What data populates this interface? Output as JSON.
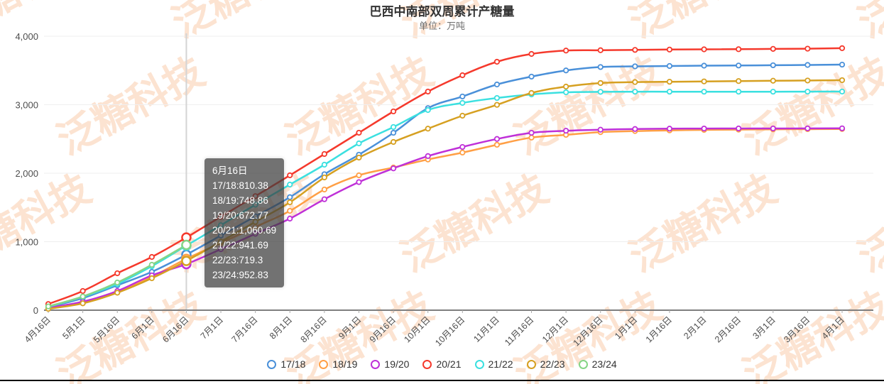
{
  "header": {
    "title": "巴西中南部双周累计产糖量",
    "subtitle": "单位：万吨"
  },
  "watermark": {
    "text": "泛糖科技",
    "color": "rgba(248,184,140,0.40)"
  },
  "tooltip": {
    "title": "6月16日",
    "rows": [
      {
        "series": "17/18",
        "value": "810.38"
      },
      {
        "series": "18/19",
        "value": "748.86"
      },
      {
        "series": "19/20",
        "value": "672.77"
      },
      {
        "series": "20/21",
        "value": "1,060.69"
      },
      {
        "series": "21/22",
        "value": "941.69"
      },
      {
        "series": "22/23",
        "value": "719.3"
      },
      {
        "series": "23/24",
        "value": "952.83"
      }
    ]
  },
  "chart_data": {
    "type": "line",
    "title": "巴西中南部双周累计产糖量",
    "ylabel": "万吨",
    "categories": [
      "4月16日",
      "5月1日",
      "5月16日",
      "6月1日",
      "6月16日",
      "7月1日",
      "7月16日",
      "8月1日",
      "8月16日",
      "9月1日",
      "9月16日",
      "10月1日",
      "10月16日",
      "11月1日",
      "11月16日",
      "12月1日",
      "12月16日",
      "1月1日",
      "1月16日",
      "2月1日",
      "2月16日",
      "3月1日",
      "3月16日",
      "4月1日"
    ],
    "ylim": [
      0,
      4000
    ],
    "yticks": [
      0,
      1000,
      2000,
      3000,
      4000
    ],
    "ytick_labels": [
      "0",
      "1,000",
      "2,000",
      "3,000",
      "4,000"
    ],
    "grid": true,
    "legend_position": "bottom",
    "highlight_index": 4,
    "series": [
      {
        "name": "17/18",
        "color": "#4a90d9",
        "values": [
          45,
          176,
          363,
          560,
          810.38,
          1090,
          1370,
          1650,
          1985,
          2270,
          2590,
          2950,
          3120,
          3295,
          3410,
          3500,
          3550,
          3560,
          3565,
          3570,
          3572,
          3576,
          3580,
          3585
        ]
      },
      {
        "name": "18/19",
        "color": "#ff9f45",
        "values": [
          25,
          104,
          259,
          487,
          748.86,
          980,
          1215,
          1450,
          1762,
          1969,
          2083,
          2200,
          2301,
          2415,
          2520,
          2560,
          2600,
          2615,
          2625,
          2632,
          2636,
          2640,
          2643,
          2645
        ]
      },
      {
        "name": "19/20",
        "color": "#bf30d8",
        "values": [
          35,
          124,
          280,
          508,
          672.77,
          890,
          1115,
          1337,
          1620,
          1870,
          2070,
          2250,
          2383,
          2500,
          2590,
          2620,
          2635,
          2645,
          2650,
          2652,
          2653,
          2653,
          2654,
          2655
        ]
      },
      {
        "name": "20/21",
        "color": "#f5392c",
        "values": [
          90,
          280,
          539,
          777,
          1060.69,
          1365,
          1665,
          1969,
          2280,
          2591,
          2902,
          3192,
          3430,
          3627,
          3741,
          3790,
          3795,
          3800,
          3805,
          3808,
          3810,
          3815,
          3818,
          3825
        ]
      },
      {
        "name": "21/22",
        "color": "#3be0e0",
        "values": [
          50,
          195,
          383,
          642,
          941.69,
          1240,
          1540,
          1834,
          2124,
          2435,
          2674,
          2922,
          3026,
          3098,
          3150,
          3181,
          3188,
          3190,
          3190,
          3190,
          3190,
          3190,
          3191,
          3192
        ]
      },
      {
        "name": "22/23",
        "color": "#d6a021",
        "values": [
          20,
          100,
          255,
          466,
          719.3,
          1000,
          1290,
          1575,
          1938,
          2228,
          2456,
          2650,
          2839,
          2998,
          3171,
          3264,
          3316,
          3330,
          3335,
          3340,
          3345,
          3350,
          3353,
          3358
        ]
      },
      {
        "name": "23/24",
        "color": "#85d586",
        "values": [
          55,
          200,
          404,
          663,
          952.83,
          null,
          null,
          null,
          null,
          null,
          null,
          null,
          null,
          null,
          null,
          null,
          null,
          null,
          null,
          null,
          null,
          null,
          null,
          null
        ]
      }
    ]
  }
}
